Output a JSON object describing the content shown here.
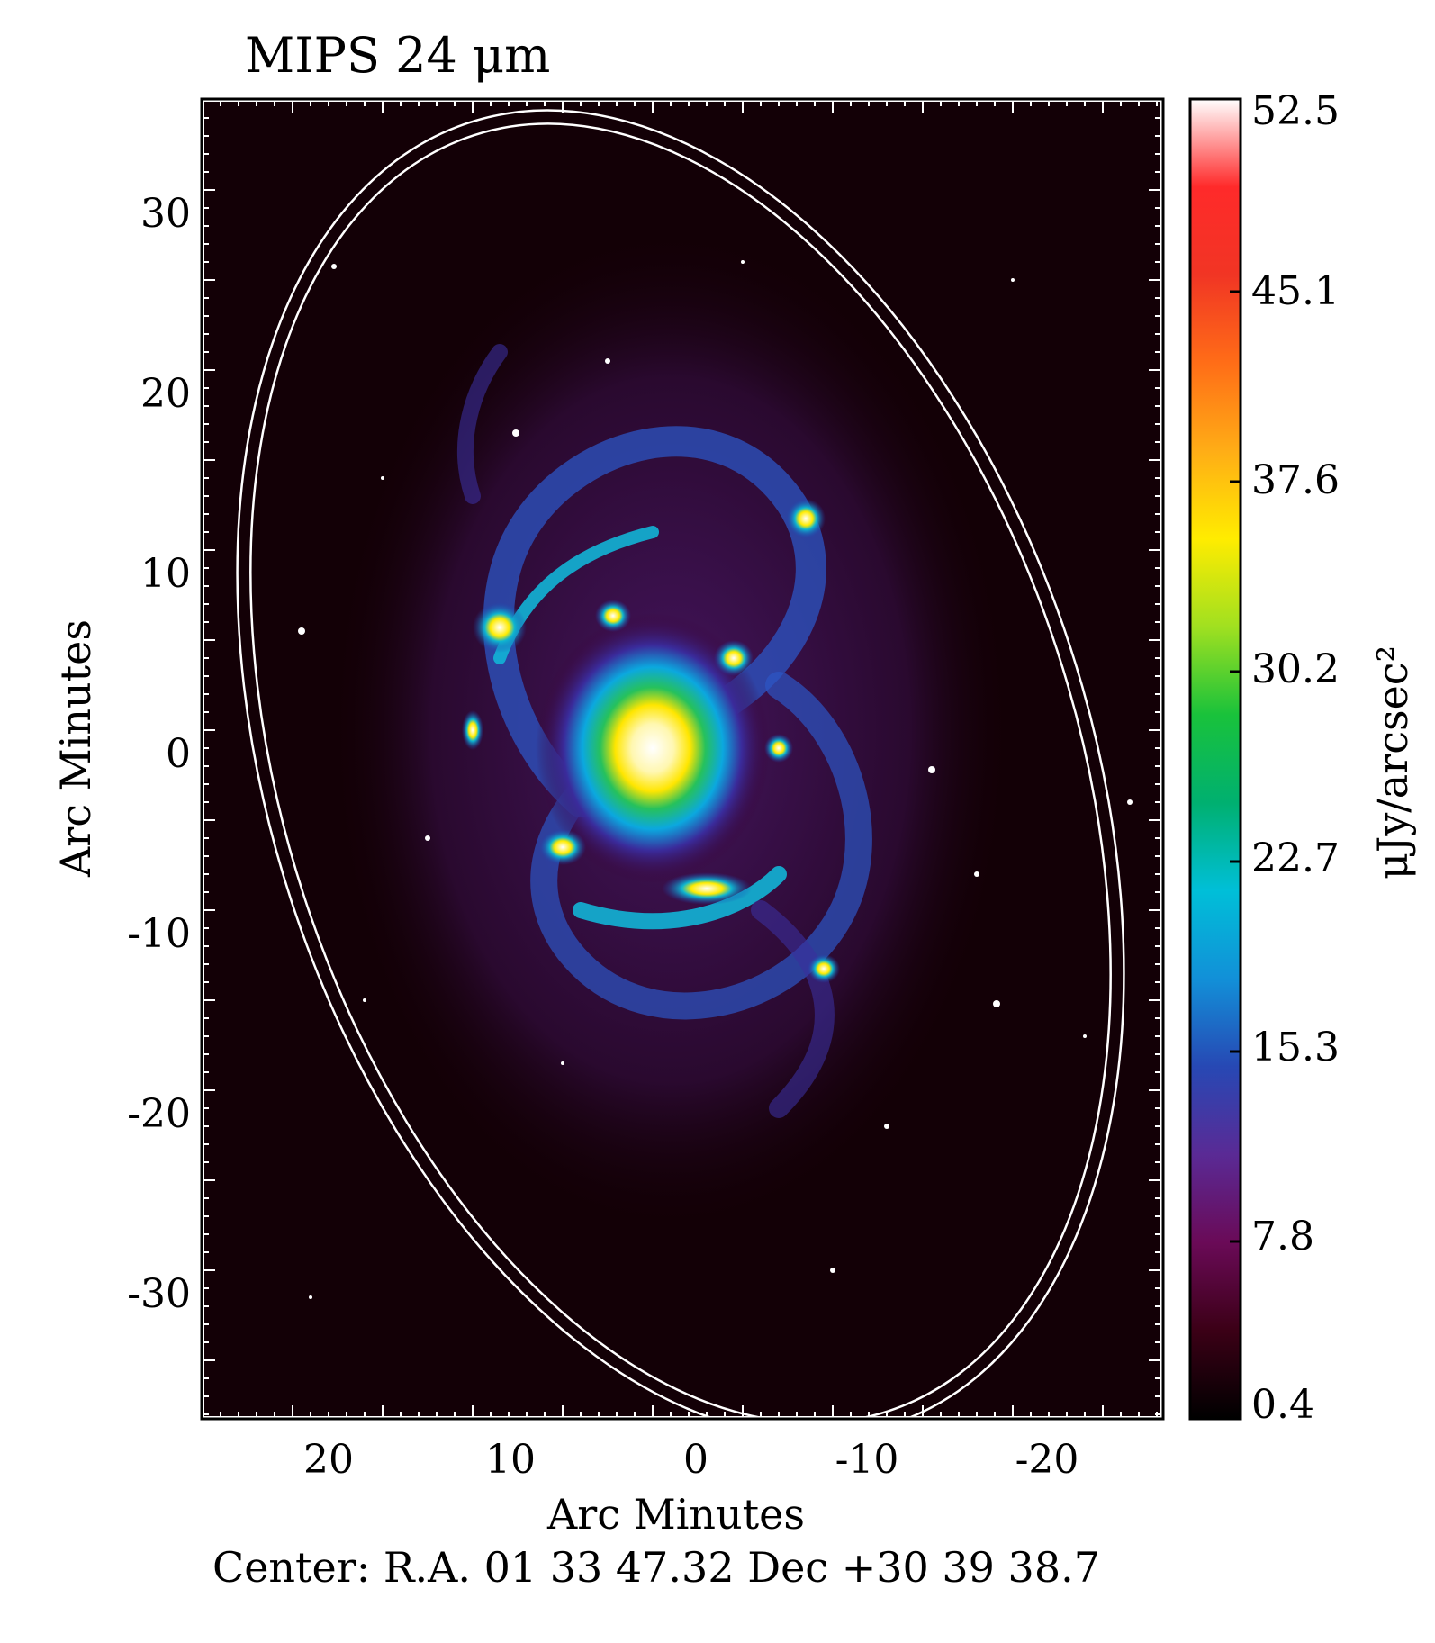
{
  "title": "MIPS 24 μm",
  "x_axis": {
    "label": "Arc Minutes",
    "ticks": [
      "20",
      "10",
      "0",
      "-10",
      "-20"
    ]
  },
  "y_axis": {
    "label": "Arc Minutes",
    "ticks": [
      "30",
      "20",
      "10",
      "0",
      "-10",
      "-20",
      "-30"
    ]
  },
  "colorbar": {
    "label": "μJy/arcsec²",
    "ticks": [
      "52.5",
      "45.1",
      "37.6",
      "30.2",
      "22.7",
      "15.3",
      "7.8",
      "0.4"
    ],
    "colors": [
      "#000000",
      "#3b0016",
      "#6a0a57",
      "#5a2a95",
      "#2748b4",
      "#1290d8",
      "#00bfd8",
      "#00b070",
      "#19c23b",
      "#a0e020",
      "#ffec00",
      "#ffad16",
      "#ff6d17",
      "#f13524",
      "#ff2a2a",
      "#ffffff"
    ]
  },
  "footer": {
    "center_text": "Center:  R.A. 01 33 47.32     Dec  +30 39 38.7"
  },
  "image": {
    "background_color": "#130006",
    "ellipse_color": "#ffffff"
  }
}
